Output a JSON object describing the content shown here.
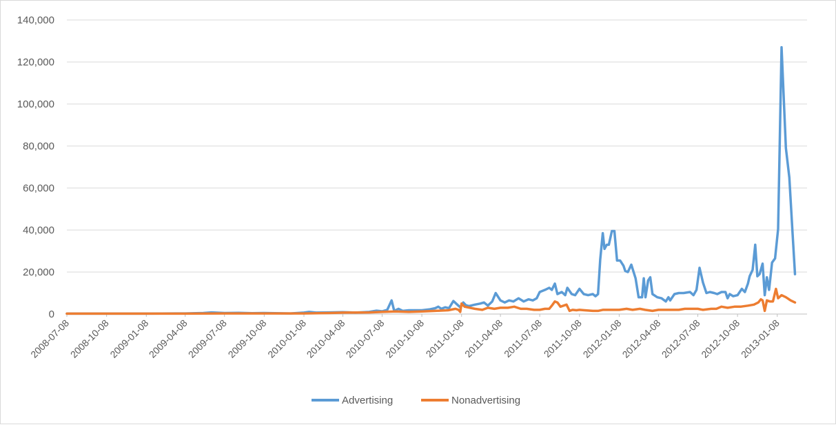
{
  "chart_data": {
    "type": "line",
    "title": "",
    "xlabel": "",
    "ylabel": "",
    "ylim": [
      0,
      140000
    ],
    "y_ticks": [
      "0",
      "20,000",
      "40,000",
      "60,000",
      "80,000",
      "100,000",
      "120,000",
      "140,000"
    ],
    "x_tick_labels": [
      "2008-07-08",
      "2008-10-08",
      "2009-01-08",
      "2009-04-08",
      "2009-07-08",
      "2009-10-08",
      "2010-01-08",
      "2010-04-08",
      "2010-07-08",
      "2010-10-08",
      "2011-01-08",
      "2011-04-08",
      "2011-07-08",
      "2011-10-08",
      "2012-01-08",
      "2012-04-08",
      "2012-07-08",
      "2012-10-08",
      "2013-01-08"
    ],
    "x_start": "2008-07-08",
    "x_end": "2013-03-18",
    "grid": "horizontal",
    "legend_position": "bottom",
    "series": [
      {
        "name": "Advertising",
        "color": "#5b9bd5",
        "points": [
          [
            "2008-07-08",
            200
          ],
          [
            "2008-10-08",
            200
          ],
          [
            "2009-01-08",
            200
          ],
          [
            "2009-04-08",
            300
          ],
          [
            "2009-05-20",
            500
          ],
          [
            "2009-06-08",
            800
          ],
          [
            "2009-07-08",
            500
          ],
          [
            "2009-08-10",
            600
          ],
          [
            "2009-09-10",
            400
          ],
          [
            "2009-10-08",
            500
          ],
          [
            "2009-12-08",
            300
          ],
          [
            "2010-01-08",
            700
          ],
          [
            "2010-01-20",
            1000
          ],
          [
            "2010-02-05",
            700
          ],
          [
            "2010-03-08",
            800
          ],
          [
            "2010-04-08",
            900
          ],
          [
            "2010-05-08",
            700
          ],
          [
            "2010-06-08",
            1000
          ],
          [
            "2010-06-25",
            1600
          ],
          [
            "2010-07-08",
            1300
          ],
          [
            "2010-07-20",
            2000
          ],
          [
            "2010-07-30",
            6500
          ],
          [
            "2010-08-05",
            1500
          ],
          [
            "2010-08-15",
            2500
          ],
          [
            "2010-08-25",
            1500
          ],
          [
            "2010-09-08",
            1800
          ],
          [
            "2010-10-08",
            1800
          ],
          [
            "2010-10-25",
            2200
          ],
          [
            "2010-11-08",
            2800
          ],
          [
            "2010-11-15",
            3500
          ],
          [
            "2010-11-22",
            2500
          ],
          [
            "2010-12-01",
            3200
          ],
          [
            "2010-12-10",
            2800
          ],
          [
            "2010-12-20",
            6200
          ],
          [
            "2010-12-29",
            4500
          ],
          [
            "2011-01-05",
            3200
          ],
          [
            "2011-01-12",
            5500
          ],
          [
            "2011-01-18",
            4200
          ],
          [
            "2011-01-25",
            3800
          ],
          [
            "2011-02-08",
            4500
          ],
          [
            "2011-02-20",
            5000
          ],
          [
            "2011-03-01",
            5500
          ],
          [
            "2011-03-10",
            4000
          ],
          [
            "2011-03-20",
            6000
          ],
          [
            "2011-03-28",
            10000
          ],
          [
            "2011-04-08",
            6500
          ],
          [
            "2011-04-18",
            5500
          ],
          [
            "2011-04-28",
            6500
          ],
          [
            "2011-05-08",
            6000
          ],
          [
            "2011-05-20",
            7500
          ],
          [
            "2011-06-01",
            6000
          ],
          [
            "2011-06-12",
            7000
          ],
          [
            "2011-06-22",
            6500
          ],
          [
            "2011-07-01",
            7500
          ],
          [
            "2011-07-08",
            10500
          ],
          [
            "2011-07-20",
            11500
          ],
          [
            "2011-07-30",
            12500
          ],
          [
            "2011-08-05",
            11500
          ],
          [
            "2011-08-12",
            14500
          ],
          [
            "2011-08-18",
            9500
          ],
          [
            "2011-08-28",
            10500
          ],
          [
            "2011-09-05",
            9000
          ],
          [
            "2011-09-10",
            12500
          ],
          [
            "2011-09-20",
            9500
          ],
          [
            "2011-09-28",
            9000
          ],
          [
            "2011-10-08",
            12000
          ],
          [
            "2011-10-18",
            9500
          ],
          [
            "2011-10-28",
            9000
          ],
          [
            "2011-11-08",
            9500
          ],
          [
            "2011-11-14",
            8500
          ],
          [
            "2011-11-20",
            9500
          ],
          [
            "2011-11-25",
            26000
          ],
          [
            "2011-12-01",
            38500
          ],
          [
            "2011-12-05",
            31000
          ],
          [
            "2011-12-10",
            33000
          ],
          [
            "2011-12-15",
            33000
          ],
          [
            "2011-12-22",
            39500
          ],
          [
            "2011-12-28",
            39500
          ],
          [
            "2012-01-03",
            25500
          ],
          [
            "2012-01-10",
            25500
          ],
          [
            "2012-01-18",
            23000
          ],
          [
            "2012-01-22",
            20500
          ],
          [
            "2012-01-28",
            20000
          ],
          [
            "2012-02-05",
            23500
          ],
          [
            "2012-02-15",
            17000
          ],
          [
            "2012-02-22",
            8000
          ],
          [
            "2012-03-01",
            8000
          ],
          [
            "2012-03-05",
            17000
          ],
          [
            "2012-03-09",
            8000
          ],
          [
            "2012-03-15",
            16000
          ],
          [
            "2012-03-20",
            17500
          ],
          [
            "2012-03-25",
            9500
          ],
          [
            "2012-04-05",
            8000
          ],
          [
            "2012-04-15",
            7500
          ],
          [
            "2012-04-25",
            6000
          ],
          [
            "2012-05-01",
            8000
          ],
          [
            "2012-05-05",
            6500
          ],
          [
            "2012-05-15",
            9500
          ],
          [
            "2012-05-25",
            10000
          ],
          [
            "2012-06-05",
            10000
          ],
          [
            "2012-06-20",
            10500
          ],
          [
            "2012-06-28",
            9000
          ],
          [
            "2012-07-05",
            11500
          ],
          [
            "2012-07-12",
            22000
          ],
          [
            "2012-07-20",
            15000
          ],
          [
            "2012-07-28",
            10000
          ],
          [
            "2012-08-05",
            10500
          ],
          [
            "2012-08-15",
            10000
          ],
          [
            "2012-08-22",
            9500
          ],
          [
            "2012-09-01",
            10500
          ],
          [
            "2012-09-10",
            10500
          ],
          [
            "2012-09-15",
            7500
          ],
          [
            "2012-09-20",
            9500
          ],
          [
            "2012-09-28",
            8500
          ],
          [
            "2012-10-08",
            9000
          ],
          [
            "2012-10-18",
            12000
          ],
          [
            "2012-10-25",
            10500
          ],
          [
            "2012-11-01",
            14500
          ],
          [
            "2012-11-05",
            18000
          ],
          [
            "2012-11-12",
            21000
          ],
          [
            "2012-11-18",
            33000
          ],
          [
            "2012-11-23",
            18000
          ],
          [
            "2012-11-28",
            19000
          ],
          [
            "2012-12-05",
            24000
          ],
          [
            "2012-12-10",
            9000
          ],
          [
            "2012-12-15",
            17500
          ],
          [
            "2012-12-20",
            11500
          ],
          [
            "2012-12-27",
            24500
          ],
          [
            "2013-01-03",
            26500
          ],
          [
            "2013-01-10",
            40500
          ],
          [
            "2013-01-18",
            127000
          ],
          [
            "2013-01-28",
            79000
          ],
          [
            "2013-02-05",
            65000
          ],
          [
            "2013-02-12",
            40000
          ],
          [
            "2013-02-18",
            19000
          ]
        ]
      },
      {
        "name": "Nonadvertising",
        "color": "#ed7d31",
        "points": [
          [
            "2008-07-08",
            200
          ],
          [
            "2009-04-08",
            200
          ],
          [
            "2009-07-08",
            300
          ],
          [
            "2009-10-08",
            300
          ],
          [
            "2010-01-08",
            300
          ],
          [
            "2010-03-08",
            500
          ],
          [
            "2010-04-08",
            700
          ],
          [
            "2010-06-08",
            800
          ],
          [
            "2010-07-08",
            1000
          ],
          [
            "2010-08-08",
            1200
          ],
          [
            "2010-09-08",
            1000
          ],
          [
            "2010-10-08",
            1200
          ],
          [
            "2010-11-08",
            1500
          ],
          [
            "2010-12-08",
            1800
          ],
          [
            "2010-12-25",
            2500
          ],
          [
            "2011-01-01",
            2000
          ],
          [
            "2011-01-05",
            1000
          ],
          [
            "2011-01-08",
            5000
          ],
          [
            "2011-01-15",
            3500
          ],
          [
            "2011-02-08",
            2500
          ],
          [
            "2011-02-25",
            2000
          ],
          [
            "2011-03-10",
            3000
          ],
          [
            "2011-03-25",
            2500
          ],
          [
            "2011-04-08",
            3000
          ],
          [
            "2011-04-25",
            3000
          ],
          [
            "2011-05-10",
            3500
          ],
          [
            "2011-05-25",
            2500
          ],
          [
            "2011-06-08",
            2500
          ],
          [
            "2011-06-25",
            2000
          ],
          [
            "2011-07-08",
            2000
          ],
          [
            "2011-07-20",
            2500
          ],
          [
            "2011-07-30",
            2500
          ],
          [
            "2011-08-05",
            4000
          ],
          [
            "2011-08-12",
            6000
          ],
          [
            "2011-08-18",
            5500
          ],
          [
            "2011-08-25",
            3500
          ],
          [
            "2011-09-01",
            4000
          ],
          [
            "2011-09-08",
            4500
          ],
          [
            "2011-09-15",
            1500
          ],
          [
            "2011-09-22",
            2000
          ],
          [
            "2011-10-01",
            1800
          ],
          [
            "2011-10-08",
            2000
          ],
          [
            "2011-10-20",
            1800
          ],
          [
            "2011-11-08",
            1500
          ],
          [
            "2011-11-20",
            1500
          ],
          [
            "2011-12-01",
            2000
          ],
          [
            "2011-12-15",
            2000
          ],
          [
            "2012-01-08",
            2000
          ],
          [
            "2012-01-25",
            2500
          ],
          [
            "2012-02-08",
            2000
          ],
          [
            "2012-02-25",
            2500
          ],
          [
            "2012-03-08",
            2000
          ],
          [
            "2012-03-25",
            1500
          ],
          [
            "2012-04-08",
            2000
          ],
          [
            "2012-04-25",
            2000
          ],
          [
            "2012-05-08",
            2000
          ],
          [
            "2012-05-25",
            2000
          ],
          [
            "2012-06-08",
            2500
          ],
          [
            "2012-06-25",
            2500
          ],
          [
            "2012-07-08",
            2500
          ],
          [
            "2012-07-20",
            2000
          ],
          [
            "2012-08-08",
            2500
          ],
          [
            "2012-08-20",
            2500
          ],
          [
            "2012-09-01",
            3500
          ],
          [
            "2012-09-15",
            3000
          ],
          [
            "2012-10-01",
            3500
          ],
          [
            "2012-10-15",
            3500
          ],
          [
            "2012-11-01",
            4000
          ],
          [
            "2012-11-15",
            4500
          ],
          [
            "2012-11-25",
            5500
          ],
          [
            "2012-12-01",
            7000
          ],
          [
            "2012-12-05",
            6500
          ],
          [
            "2012-12-10",
            1500
          ],
          [
            "2012-12-15",
            6500
          ],
          [
            "2012-12-22",
            6000
          ],
          [
            "2012-12-29",
            6000
          ],
          [
            "2013-01-05",
            12000
          ],
          [
            "2013-01-10",
            7500
          ],
          [
            "2013-01-18",
            9000
          ],
          [
            "2013-01-28",
            8000
          ],
          [
            "2013-02-08",
            6500
          ],
          [
            "2013-02-18",
            5500
          ]
        ]
      }
    ]
  }
}
